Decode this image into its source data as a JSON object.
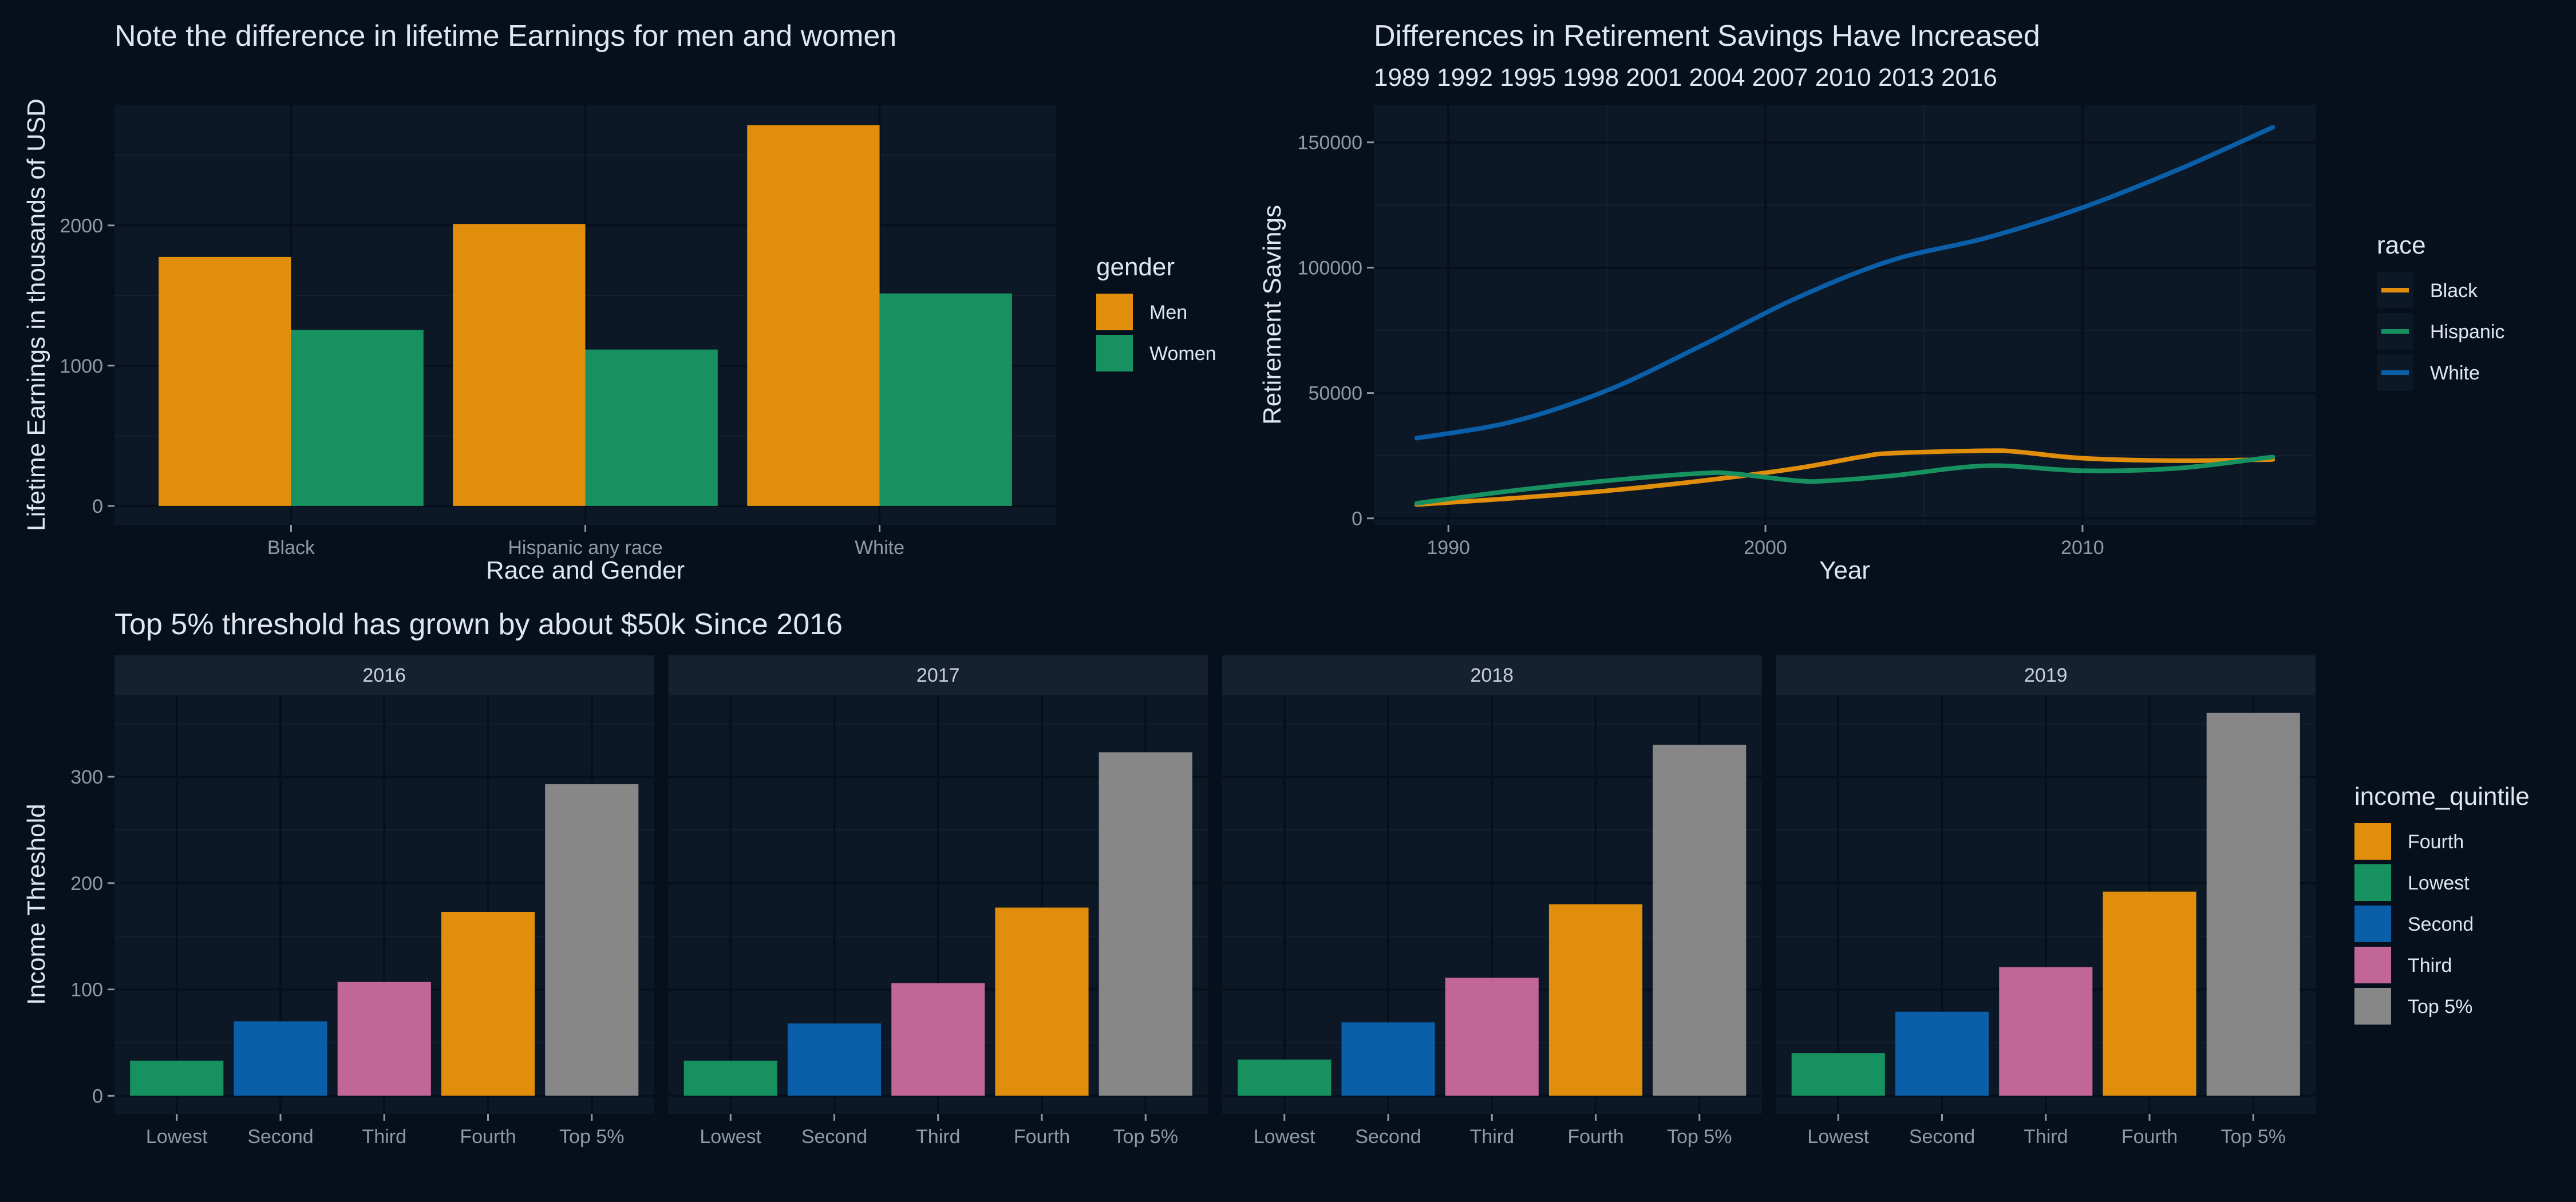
{
  "colors": {
    "background": "#06101c",
    "panel": "#0d1826",
    "strip": "#152130",
    "grid_major": "#06101c",
    "title_text": "#e1e6ee",
    "axis_text": "#8f9aa7",
    "legend_text": "#e1e6ee",
    "men": "#e08e0b",
    "women": "#17915f",
    "black": "#e08e0b",
    "hispanic": "#17915f",
    "white": "#0b5ea8",
    "fourth": "#e08e0b",
    "lowest": "#17915f",
    "second": "#0b5ea8",
    "third": "#c26597",
    "top5": "#878787"
  },
  "chart_data": [
    {
      "id": "earnings",
      "type": "bar",
      "title": "Note the difference in lifetime Earnings for men and women",
      "xlabel": "Race and Gender",
      "ylabel": "Lifetime Earnings in thousands of USD",
      "categories": [
        "Black",
        "Hispanic any race",
        "White"
      ],
      "series": [
        {
          "name": "Men",
          "color_key": "men",
          "values": [
            1775,
            2010,
            2715
          ]
        },
        {
          "name": "Women",
          "color_key": "women",
          "values": [
            1255,
            1115,
            1515
          ]
        }
      ],
      "yticks": [
        0,
        1000,
        2000
      ],
      "ylim": [
        -135,
        2860
      ],
      "grid": true,
      "legend": {
        "title": "gender",
        "position": "right",
        "items": [
          "Men",
          "Women"
        ]
      }
    },
    {
      "id": "savings",
      "type": "line",
      "title": "Differences in Retirement Savings Have Increased",
      "subtitle": "1989 1992 1995 1998 2001 2004 2007 2010 2013 2016",
      "xlabel": "Year",
      "ylabel": "Retirement Savings",
      "xticks": [
        1990,
        2000,
        2010
      ],
      "yticks": [
        0,
        50000,
        100000,
        150000
      ],
      "tick_labels_y": [
        "0",
        "50000",
        "100000",
        "150000"
      ],
      "xlim": [
        1987.65,
        2017.35
      ],
      "ylim": [
        -2600,
        165000
      ],
      "grid": true,
      "legend": {
        "title": "race",
        "position": "right",
        "items": [
          "Black",
          "Hispanic",
          "White"
        ]
      },
      "series": [
        {
          "name": "Black",
          "color_key": "black",
          "x": [
            1989,
            1992,
            1995,
            1998,
            2001,
            2003,
            2004,
            2007,
            2008,
            2010,
            2013,
            2016
          ],
          "y": [
            5500,
            8000,
            11000,
            15000,
            20000,
            24500,
            26000,
            27000,
            26500,
            24000,
            23000,
            23500
          ]
        },
        {
          "name": "Hispanic",
          "color_key": "hispanic",
          "x": [
            1989,
            1992,
            1995,
            1998,
            1999,
            2001,
            2002,
            2004,
            2007,
            2010,
            2013,
            2016
          ],
          "y": [
            6000,
            11000,
            15000,
            18000,
            17800,
            15000,
            15000,
            17000,
            21000,
            19000,
            20000,
            24500
          ]
        },
        {
          "name": "White",
          "color_key": "white",
          "x": [
            1989,
            1992,
            1995,
            1998,
            2001,
            2004,
            2007,
            2010,
            2013,
            2016
          ],
          "y": [
            32000,
            38500,
            51000,
            69000,
            88000,
            103000,
            112000,
            124000,
            139000,
            156000
          ]
        }
      ]
    },
    {
      "id": "thresholds",
      "type": "bar",
      "title": "Top 5% threshold has grown by about $50k Since 2016",
      "xlabel": "",
      "ylabel": "Income Threshold",
      "categories": [
        "Lowest",
        "Second",
        "Third",
        "Fourth",
        "Top 5%"
      ],
      "category_colors": [
        "lowest",
        "second",
        "third",
        "fourth",
        "top5"
      ],
      "yticks": [
        0,
        100,
        200,
        300
      ],
      "ylim": [
        -17,
        377
      ],
      "grid": true,
      "facets": [
        {
          "label": "2016",
          "values": [
            33,
            70,
            107,
            173,
            293
          ]
        },
        {
          "label": "2017",
          "values": [
            33,
            68,
            106,
            177,
            323
          ]
        },
        {
          "label": "2018",
          "values": [
            34,
            69,
            111,
            180,
            330
          ]
        },
        {
          "label": "2019",
          "values": [
            40,
            79,
            121,
            192,
            360
          ]
        }
      ],
      "legend": {
        "title": "income_quintile",
        "position": "right",
        "items": [
          "Fourth",
          "Lowest",
          "Second",
          "Third",
          "Top 5%"
        ]
      }
    }
  ]
}
